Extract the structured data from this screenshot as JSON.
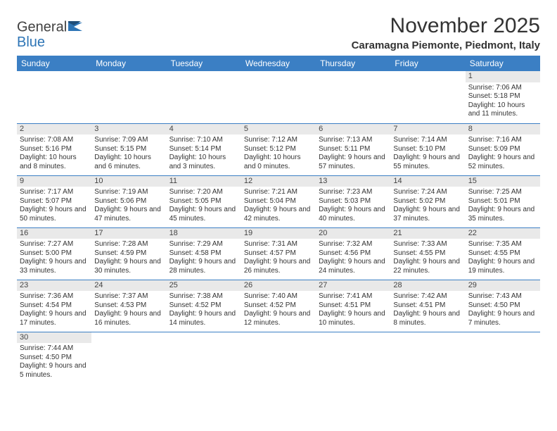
{
  "brand": {
    "name1": "General",
    "name2": "Blue"
  },
  "title": "November 2025",
  "location": "Caramagna Piemonte, Piedmont, Italy",
  "colors": {
    "header_bg": "#3b7fc4",
    "header_text": "#ffffff",
    "daybar_bg": "#e9e9e9",
    "border": "#3b7fc4",
    "logo_blue": "#2e75b6"
  },
  "day_headers": [
    "Sunday",
    "Monday",
    "Tuesday",
    "Wednesday",
    "Thursday",
    "Friday",
    "Saturday"
  ],
  "weeks": [
    [
      {
        "n": "",
        "sr": "",
        "ss": "",
        "dl": ""
      },
      {
        "n": "",
        "sr": "",
        "ss": "",
        "dl": ""
      },
      {
        "n": "",
        "sr": "",
        "ss": "",
        "dl": ""
      },
      {
        "n": "",
        "sr": "",
        "ss": "",
        "dl": ""
      },
      {
        "n": "",
        "sr": "",
        "ss": "",
        "dl": ""
      },
      {
        "n": "",
        "sr": "",
        "ss": "",
        "dl": ""
      },
      {
        "n": "1",
        "sr": "Sunrise: 7:06 AM",
        "ss": "Sunset: 5:18 PM",
        "dl": "Daylight: 10 hours and 11 minutes."
      }
    ],
    [
      {
        "n": "2",
        "sr": "Sunrise: 7:08 AM",
        "ss": "Sunset: 5:16 PM",
        "dl": "Daylight: 10 hours and 8 minutes."
      },
      {
        "n": "3",
        "sr": "Sunrise: 7:09 AM",
        "ss": "Sunset: 5:15 PM",
        "dl": "Daylight: 10 hours and 6 minutes."
      },
      {
        "n": "4",
        "sr": "Sunrise: 7:10 AM",
        "ss": "Sunset: 5:14 PM",
        "dl": "Daylight: 10 hours and 3 minutes."
      },
      {
        "n": "5",
        "sr": "Sunrise: 7:12 AM",
        "ss": "Sunset: 5:12 PM",
        "dl": "Daylight: 10 hours and 0 minutes."
      },
      {
        "n": "6",
        "sr": "Sunrise: 7:13 AM",
        "ss": "Sunset: 5:11 PM",
        "dl": "Daylight: 9 hours and 57 minutes."
      },
      {
        "n": "7",
        "sr": "Sunrise: 7:14 AM",
        "ss": "Sunset: 5:10 PM",
        "dl": "Daylight: 9 hours and 55 minutes."
      },
      {
        "n": "8",
        "sr": "Sunrise: 7:16 AM",
        "ss": "Sunset: 5:09 PM",
        "dl": "Daylight: 9 hours and 52 minutes."
      }
    ],
    [
      {
        "n": "9",
        "sr": "Sunrise: 7:17 AM",
        "ss": "Sunset: 5:07 PM",
        "dl": "Daylight: 9 hours and 50 minutes."
      },
      {
        "n": "10",
        "sr": "Sunrise: 7:19 AM",
        "ss": "Sunset: 5:06 PM",
        "dl": "Daylight: 9 hours and 47 minutes."
      },
      {
        "n": "11",
        "sr": "Sunrise: 7:20 AM",
        "ss": "Sunset: 5:05 PM",
        "dl": "Daylight: 9 hours and 45 minutes."
      },
      {
        "n": "12",
        "sr": "Sunrise: 7:21 AM",
        "ss": "Sunset: 5:04 PM",
        "dl": "Daylight: 9 hours and 42 minutes."
      },
      {
        "n": "13",
        "sr": "Sunrise: 7:23 AM",
        "ss": "Sunset: 5:03 PM",
        "dl": "Daylight: 9 hours and 40 minutes."
      },
      {
        "n": "14",
        "sr": "Sunrise: 7:24 AM",
        "ss": "Sunset: 5:02 PM",
        "dl": "Daylight: 9 hours and 37 minutes."
      },
      {
        "n": "15",
        "sr": "Sunrise: 7:25 AM",
        "ss": "Sunset: 5:01 PM",
        "dl": "Daylight: 9 hours and 35 minutes."
      }
    ],
    [
      {
        "n": "16",
        "sr": "Sunrise: 7:27 AM",
        "ss": "Sunset: 5:00 PM",
        "dl": "Daylight: 9 hours and 33 minutes."
      },
      {
        "n": "17",
        "sr": "Sunrise: 7:28 AM",
        "ss": "Sunset: 4:59 PM",
        "dl": "Daylight: 9 hours and 30 minutes."
      },
      {
        "n": "18",
        "sr": "Sunrise: 7:29 AM",
        "ss": "Sunset: 4:58 PM",
        "dl": "Daylight: 9 hours and 28 minutes."
      },
      {
        "n": "19",
        "sr": "Sunrise: 7:31 AM",
        "ss": "Sunset: 4:57 PM",
        "dl": "Daylight: 9 hours and 26 minutes."
      },
      {
        "n": "20",
        "sr": "Sunrise: 7:32 AM",
        "ss": "Sunset: 4:56 PM",
        "dl": "Daylight: 9 hours and 24 minutes."
      },
      {
        "n": "21",
        "sr": "Sunrise: 7:33 AM",
        "ss": "Sunset: 4:55 PM",
        "dl": "Daylight: 9 hours and 22 minutes."
      },
      {
        "n": "22",
        "sr": "Sunrise: 7:35 AM",
        "ss": "Sunset: 4:55 PM",
        "dl": "Daylight: 9 hours and 19 minutes."
      }
    ],
    [
      {
        "n": "23",
        "sr": "Sunrise: 7:36 AM",
        "ss": "Sunset: 4:54 PM",
        "dl": "Daylight: 9 hours and 17 minutes."
      },
      {
        "n": "24",
        "sr": "Sunrise: 7:37 AM",
        "ss": "Sunset: 4:53 PM",
        "dl": "Daylight: 9 hours and 16 minutes."
      },
      {
        "n": "25",
        "sr": "Sunrise: 7:38 AM",
        "ss": "Sunset: 4:52 PM",
        "dl": "Daylight: 9 hours and 14 minutes."
      },
      {
        "n": "26",
        "sr": "Sunrise: 7:40 AM",
        "ss": "Sunset: 4:52 PM",
        "dl": "Daylight: 9 hours and 12 minutes."
      },
      {
        "n": "27",
        "sr": "Sunrise: 7:41 AM",
        "ss": "Sunset: 4:51 PM",
        "dl": "Daylight: 9 hours and 10 minutes."
      },
      {
        "n": "28",
        "sr": "Sunrise: 7:42 AM",
        "ss": "Sunset: 4:51 PM",
        "dl": "Daylight: 9 hours and 8 minutes."
      },
      {
        "n": "29",
        "sr": "Sunrise: 7:43 AM",
        "ss": "Sunset: 4:50 PM",
        "dl": "Daylight: 9 hours and 7 minutes."
      }
    ],
    [
      {
        "n": "30",
        "sr": "Sunrise: 7:44 AM",
        "ss": "Sunset: 4:50 PM",
        "dl": "Daylight: 9 hours and 5 minutes."
      },
      {
        "n": "",
        "sr": "",
        "ss": "",
        "dl": ""
      },
      {
        "n": "",
        "sr": "",
        "ss": "",
        "dl": ""
      },
      {
        "n": "",
        "sr": "",
        "ss": "",
        "dl": ""
      },
      {
        "n": "",
        "sr": "",
        "ss": "",
        "dl": ""
      },
      {
        "n": "",
        "sr": "",
        "ss": "",
        "dl": ""
      },
      {
        "n": "",
        "sr": "",
        "ss": "",
        "dl": ""
      }
    ]
  ]
}
